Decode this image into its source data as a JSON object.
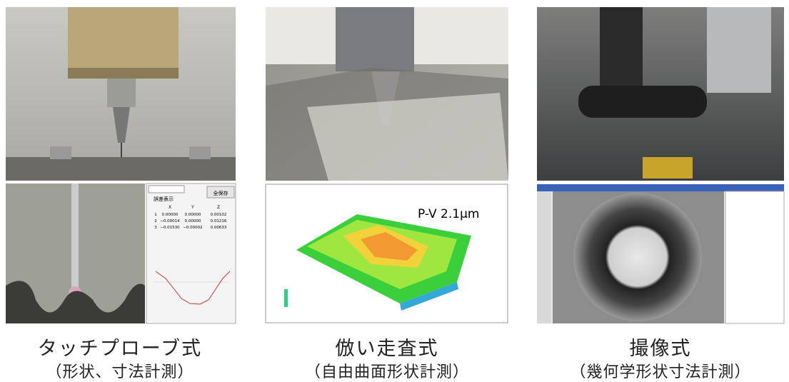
{
  "panels": [
    {
      "caption": "タッチプローブ式",
      "subcaption": "（形状、寸法計測）",
      "table": {
        "button": "全保存",
        "checkbox": "誤差表示",
        "columns": [
          "X",
          "Y",
          "Z"
        ],
        "rows": [
          [
            "1",
            "0.00000",
            "0.00000",
            "0.00102"
          ],
          [
            "2",
            "−0.00014",
            "0.00000",
            "0.01216"
          ],
          [
            "3",
            "−0.01530",
            "−0.00002",
            "0.00633"
          ]
        ]
      }
    },
    {
      "caption": "倣い走査式",
      "subcaption": "（自由曲面形状計測）",
      "annotation": "P-V 2.1μm"
    },
    {
      "caption": "撮像式",
      "subcaption": "（幾何学形状寸法計測）"
    }
  ]
}
